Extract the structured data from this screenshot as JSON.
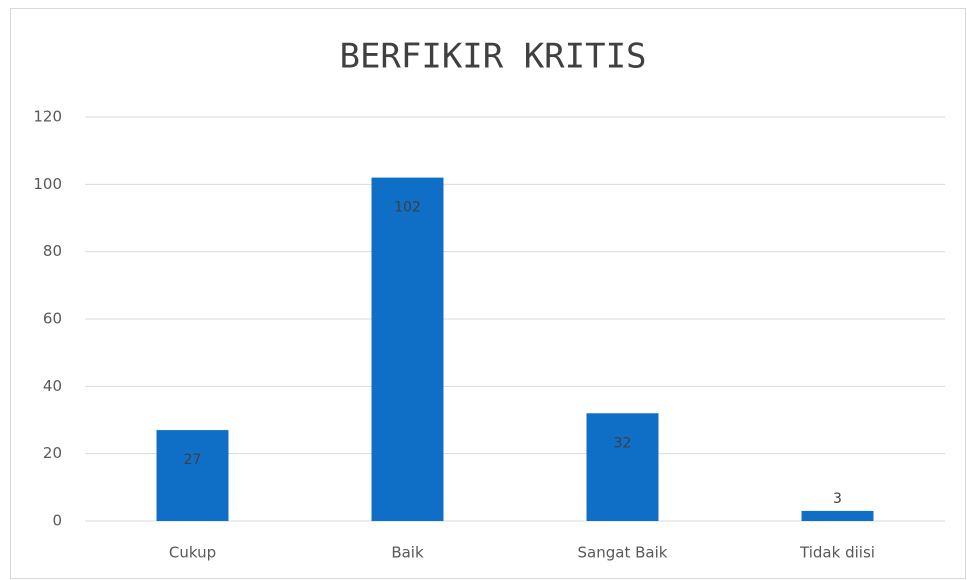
{
  "chart_data": {
    "type": "bar",
    "title": "BERFIKIR KRITIS",
    "categories": [
      "Cukup",
      "Baik",
      "Sangat Baik",
      "Tidak diisi"
    ],
    "values": [
      27,
      102,
      32,
      3
    ],
    "color": "#0f6fc6",
    "ylim": [
      0,
      120
    ],
    "yticks": [
      0,
      20,
      40,
      60,
      80,
      100,
      120
    ],
    "grid": true
  }
}
